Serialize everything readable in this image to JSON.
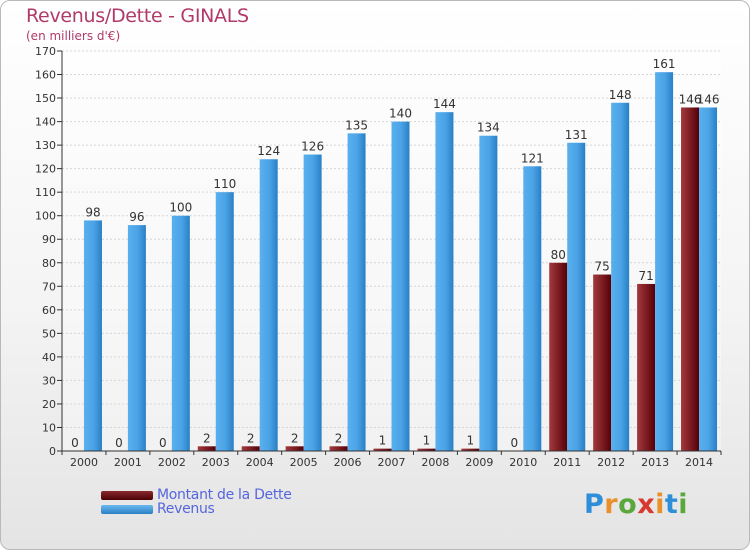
{
  "title": "Revenus/Dette - GINALS",
  "subtitle": "(en milliers d'€)",
  "logo": {
    "letters": [
      {
        "ch": "P",
        "color": "#2f8ed8"
      },
      {
        "ch": "r",
        "color": "#e8902a"
      },
      {
        "ch": "o",
        "color": "#5aa83c"
      },
      {
        "ch": "x",
        "color": "#d9382e"
      },
      {
        "ch": "i",
        "color": "#e8902a"
      },
      {
        "ch": "t",
        "color": "#2f8ed8"
      },
      {
        "ch": "i",
        "color": "#5aa83c"
      }
    ]
  },
  "legend": {
    "debt_label": "Montant de la Dette",
    "revenue_label": "Revenus"
  },
  "colors": {
    "debt": "#6b0e12",
    "revenue": "#3f9be0",
    "title": "#b03a6a",
    "legend_text": "#5566dd"
  },
  "chart_data": {
    "type": "bar",
    "categories": [
      "2000",
      "2001",
      "2002",
      "2003",
      "2004",
      "2005",
      "2006",
      "2007",
      "2008",
      "2009",
      "2010",
      "2011",
      "2012",
      "2013",
      "2014"
    ],
    "series": [
      {
        "name": "Montant de la Dette",
        "values": [
          0,
          0,
          0,
          2,
          2,
          2,
          2,
          1,
          1,
          1,
          0,
          80,
          75,
          71,
          146
        ]
      },
      {
        "name": "Revenus",
        "values": [
          98,
          96,
          100,
          110,
          124,
          126,
          135,
          140,
          144,
          134,
          121,
          131,
          148,
          161,
          146
        ]
      }
    ],
    "yticks": [
      0,
      10,
      20,
      30,
      40,
      50,
      60,
      70,
      80,
      90,
      100,
      110,
      120,
      130,
      140,
      150,
      160,
      170
    ],
    "ylim": [
      0,
      170
    ],
    "grid": true,
    "legend_position": "bottom-left"
  }
}
